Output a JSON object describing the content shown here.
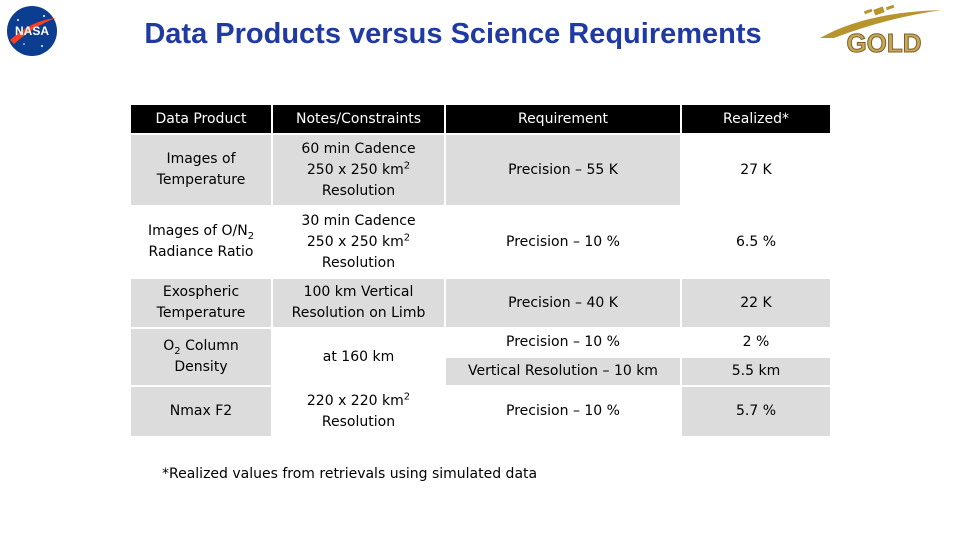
{
  "title": "Data Products versus Science Requirements",
  "logos": {
    "left": "NASA",
    "right": "GOLD"
  },
  "table": {
    "headers": [
      "Data Product",
      "Notes/Constraints",
      "Requirement",
      "Realized*"
    ],
    "rows": [
      {
        "product": "Images of Temperature",
        "notes": [
          "60 min Cadence",
          "250 x 250 km",
          "2",
          "Resolution"
        ],
        "requirement": "Precision – 55 K",
        "realized": "27 K"
      },
      {
        "product": [
          "Images of O/N",
          "2",
          "Radiance Ratio"
        ],
        "notes": [
          "30 min Cadence",
          "250 x 250 km",
          "2",
          "Resolution"
        ],
        "requirement": "Precision – 10 %",
        "realized": "6.5 %"
      },
      {
        "product": "Exospheric Temperature",
        "notes": [
          "100 km Vertical",
          "Resolution on Limb"
        ],
        "requirement": "Precision – 40 K",
        "realized": "22 K"
      },
      {
        "product": [
          "O",
          "2",
          " Column",
          "Density"
        ],
        "notes": "at 160 km",
        "requirement": [
          "Precision – 10 %",
          "Vertical Resolution – 10 km"
        ],
        "realized": [
          "2 %",
          "5.5 km"
        ]
      },
      {
        "product": "Nmax F2",
        "notes": [
          "220 x 220 km",
          "2",
          "Resolution"
        ],
        "requirement": "Precision – 10 %",
        "realized": "5.7 %"
      }
    ]
  },
  "footnote": "*Realized values from retrievals using simulated data",
  "colors": {
    "title": "#1f3aa3",
    "header_bg": "#000000",
    "row_shade": "#dcdcdc",
    "gold": "#b8942e",
    "nasa_blue": "#0b3d91",
    "nasa_red": "#fc3d21"
  }
}
